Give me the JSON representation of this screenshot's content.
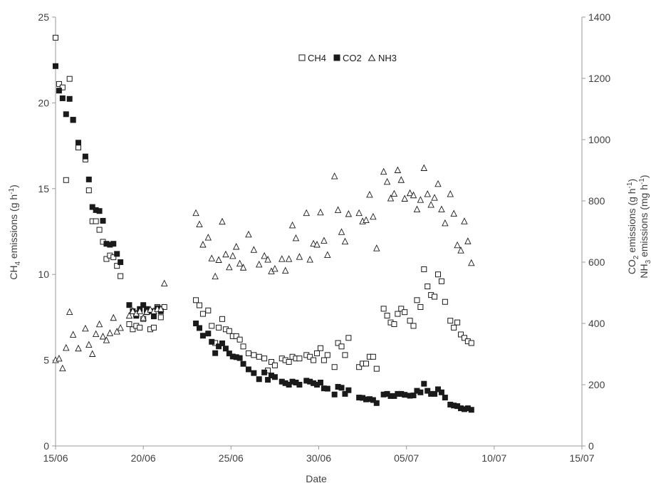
{
  "chart_data": {
    "type": "scatter",
    "xlabel": "Date",
    "ylabel_left": "CH4 emissions (g h-1)",
    "ylabel_left_parts": {
      "pre": "CH",
      "sub": "4",
      "post": " emissions (g h",
      "sup": "-1",
      "end": ")"
    },
    "ylabel_right_1_parts": {
      "pre": "CO",
      "sub": "2",
      "post": " emissions (g h",
      "sup": "-1",
      "end": ")"
    },
    "ylabel_right_2_parts": {
      "pre": "NH",
      "sub": "3",
      "post": " emissions (mg h",
      "sup": "-1",
      "end": ")"
    },
    "x_ticks": [
      "15/06",
      "20/06",
      "25/06",
      "30/06",
      "05/07",
      "10/07",
      "15/07"
    ],
    "xlim": [
      0,
      30
    ],
    "y_left_ticks": [
      "0",
      "5",
      "10",
      "15",
      "20",
      "25"
    ],
    "ylim_left": [
      0,
      25
    ],
    "y_right_ticks": [
      "0",
      "200",
      "400",
      "600",
      "800",
      "1000",
      "1200",
      "1400"
    ],
    "ylim_right": [
      0,
      1400
    ],
    "grid": false,
    "legend_position": "top-center",
    "colors": {
      "axis": "#9a9a9a",
      "marker_stroke": "#1a1a1a",
      "co2_fill": "#1a1a1a"
    },
    "series": [
      {
        "name": "CH4",
        "marker": "open-square",
        "axis": "left",
        "points": [
          [
            0.0,
            23.8
          ],
          [
            0.2,
            21.1
          ],
          [
            0.4,
            20.9
          ],
          [
            0.6,
            15.5
          ],
          [
            0.8,
            21.4
          ],
          [
            1.0,
            19.0
          ],
          [
            1.3,
            17.4
          ],
          [
            1.7,
            16.7
          ],
          [
            1.9,
            14.9
          ],
          [
            2.1,
            13.1
          ],
          [
            2.3,
            13.1
          ],
          [
            2.5,
            12.6
          ],
          [
            2.7,
            11.9
          ],
          [
            2.9,
            10.9
          ],
          [
            3.1,
            11.1
          ],
          [
            3.3,
            11.0
          ],
          [
            3.5,
            10.5
          ],
          [
            3.7,
            9.9
          ],
          [
            4.2,
            7.1
          ],
          [
            4.4,
            6.8
          ],
          [
            4.6,
            7.0
          ],
          [
            4.8,
            6.9
          ],
          [
            5.0,
            7.4
          ],
          [
            5.2,
            7.8
          ],
          [
            5.4,
            6.8
          ],
          [
            5.6,
            6.9
          ],
          [
            5.8,
            8.1
          ],
          [
            6.0,
            7.5
          ],
          [
            6.2,
            8.1
          ],
          [
            8.0,
            8.5
          ],
          [
            8.2,
            8.2
          ],
          [
            8.4,
            7.7
          ],
          [
            8.7,
            7.9
          ],
          [
            8.9,
            7.0
          ],
          [
            9.1,
            6.0
          ],
          [
            9.3,
            6.9
          ],
          [
            9.5,
            7.4
          ],
          [
            9.7,
            6.8
          ],
          [
            9.9,
            6.7
          ],
          [
            10.1,
            6.4
          ],
          [
            10.3,
            6.4
          ],
          [
            10.5,
            6.2
          ],
          [
            10.7,
            5.8
          ],
          [
            11.0,
            5.4
          ],
          [
            11.3,
            5.3
          ],
          [
            11.6,
            5.2
          ],
          [
            11.9,
            5.1
          ],
          [
            12.1,
            4.4
          ],
          [
            12.3,
            4.9
          ],
          [
            12.5,
            4.7
          ],
          [
            12.9,
            5.1
          ],
          [
            13.1,
            5.0
          ],
          [
            13.3,
            4.9
          ],
          [
            13.5,
            5.2
          ],
          [
            13.7,
            5.1
          ],
          [
            13.9,
            5.1
          ],
          [
            14.3,
            5.3
          ],
          [
            14.5,
            5.2
          ],
          [
            14.7,
            5.0
          ],
          [
            14.9,
            5.4
          ],
          [
            15.1,
            5.7
          ],
          [
            15.3,
            5.0
          ],
          [
            15.5,
            5.3
          ],
          [
            15.9,
            4.6
          ],
          [
            16.1,
            6.0
          ],
          [
            16.3,
            5.8
          ],
          [
            16.5,
            5.3
          ],
          [
            16.7,
            6.3
          ],
          [
            17.3,
            4.6
          ],
          [
            17.5,
            4.8
          ],
          [
            17.7,
            4.8
          ],
          [
            17.9,
            5.2
          ],
          [
            18.1,
            5.2
          ],
          [
            18.3,
            4.5
          ],
          [
            18.7,
            8.0
          ],
          [
            18.9,
            7.6
          ],
          [
            19.1,
            7.2
          ],
          [
            19.3,
            7.1
          ],
          [
            19.5,
            7.7
          ],
          [
            19.7,
            8.0
          ],
          [
            19.9,
            7.8
          ],
          [
            20.2,
            7.3
          ],
          [
            20.4,
            7.0
          ],
          [
            20.6,
            8.5
          ],
          [
            20.8,
            8.1
          ],
          [
            21.0,
            10.3
          ],
          [
            21.2,
            9.3
          ],
          [
            21.4,
            8.8
          ],
          [
            21.6,
            8.7
          ],
          [
            21.8,
            10.0
          ],
          [
            22.0,
            9.6
          ],
          [
            22.2,
            8.4
          ],
          [
            22.5,
            7.3
          ],
          [
            22.7,
            6.9
          ],
          [
            22.9,
            7.2
          ],
          [
            23.1,
            6.5
          ],
          [
            23.3,
            6.3
          ],
          [
            23.5,
            6.1
          ],
          [
            23.7,
            6.0
          ]
        ]
      },
      {
        "name": "CO2",
        "marker": "filled-square",
        "axis": "right",
        "points": [
          [
            0.0,
            1240
          ],
          [
            0.2,
            1160
          ],
          [
            0.4,
            1135
          ],
          [
            0.6,
            1083
          ],
          [
            0.8,
            1133
          ],
          [
            1.0,
            1065
          ],
          [
            1.3,
            990
          ],
          [
            1.7,
            945
          ],
          [
            1.9,
            870
          ],
          [
            2.1,
            780
          ],
          [
            2.3,
            770
          ],
          [
            2.5,
            767
          ],
          [
            2.7,
            735
          ],
          [
            2.9,
            660
          ],
          [
            3.1,
            657
          ],
          [
            3.3,
            660
          ],
          [
            3.5,
            627
          ],
          [
            3.7,
            600
          ],
          [
            4.2,
            460
          ],
          [
            4.4,
            440
          ],
          [
            4.6,
            425
          ],
          [
            4.8,
            447
          ],
          [
            5.0,
            460
          ],
          [
            5.2,
            447
          ],
          [
            5.4,
            440
          ],
          [
            5.6,
            423
          ],
          [
            5.8,
            450
          ],
          [
            6.0,
            440
          ],
          [
            8.0,
            400
          ],
          [
            8.2,
            385
          ],
          [
            8.4,
            360
          ],
          [
            8.7,
            367
          ],
          [
            8.9,
            340
          ],
          [
            9.1,
            303
          ],
          [
            9.3,
            325
          ],
          [
            9.5,
            335
          ],
          [
            9.7,
            318
          ],
          [
            9.9,
            302
          ],
          [
            10.1,
            292
          ],
          [
            10.3,
            290
          ],
          [
            10.5,
            287
          ],
          [
            10.7,
            268
          ],
          [
            11.0,
            250
          ],
          [
            11.3,
            238
          ],
          [
            11.6,
            218
          ],
          [
            11.9,
            240
          ],
          [
            12.1,
            216
          ],
          [
            12.3,
            230
          ],
          [
            12.5,
            225
          ],
          [
            12.9,
            210
          ],
          [
            13.1,
            205
          ],
          [
            13.3,
            200
          ],
          [
            13.5,
            210
          ],
          [
            13.7,
            207
          ],
          [
            13.9,
            200
          ],
          [
            14.3,
            213
          ],
          [
            14.5,
            210
          ],
          [
            14.7,
            205
          ],
          [
            14.9,
            200
          ],
          [
            15.1,
            207
          ],
          [
            15.3,
            188
          ],
          [
            15.5,
            187
          ],
          [
            15.9,
            168
          ],
          [
            16.1,
            193
          ],
          [
            16.3,
            190
          ],
          [
            16.5,
            170
          ],
          [
            16.7,
            182
          ],
          [
            17.3,
            158
          ],
          [
            17.5,
            157
          ],
          [
            17.7,
            152
          ],
          [
            17.9,
            153
          ],
          [
            18.1,
            150
          ],
          [
            18.3,
            140
          ],
          [
            18.7,
            168
          ],
          [
            18.9,
            170
          ],
          [
            19.1,
            163
          ],
          [
            19.3,
            163
          ],
          [
            19.5,
            170
          ],
          [
            19.7,
            170
          ],
          [
            19.9,
            167
          ],
          [
            20.2,
            164
          ],
          [
            20.4,
            165
          ],
          [
            20.6,
            180
          ],
          [
            20.8,
            175
          ],
          [
            21.0,
            203
          ],
          [
            21.2,
            180
          ],
          [
            21.4,
            170
          ],
          [
            21.6,
            170
          ],
          [
            21.8,
            185
          ],
          [
            22.0,
            175
          ],
          [
            22.2,
            158
          ],
          [
            22.5,
            135
          ],
          [
            22.7,
            132
          ],
          [
            22.9,
            130
          ],
          [
            23.1,
            123
          ],
          [
            23.3,
            120
          ],
          [
            23.5,
            123
          ],
          [
            23.7,
            118
          ]
        ]
      },
      {
        "name": "NH3",
        "marker": "open-triangle",
        "axis": "right",
        "points": [
          [
            0.0,
            280
          ],
          [
            0.2,
            285
          ],
          [
            0.4,
            253
          ],
          [
            0.6,
            320
          ],
          [
            0.8,
            437
          ],
          [
            1.0,
            363
          ],
          [
            1.3,
            318
          ],
          [
            1.7,
            383
          ],
          [
            1.9,
            330
          ],
          [
            2.1,
            300
          ],
          [
            2.3,
            365
          ],
          [
            2.5,
            397
          ],
          [
            2.7,
            357
          ],
          [
            2.9,
            345
          ],
          [
            3.1,
            368
          ],
          [
            3.3,
            418
          ],
          [
            3.5,
            373
          ],
          [
            3.7,
            385
          ],
          [
            4.2,
            425
          ],
          [
            4.4,
            440
          ],
          [
            4.6,
            432
          ],
          [
            4.8,
            440
          ],
          [
            5.0,
            418
          ],
          [
            5.2,
            438
          ],
          [
            5.4,
            445
          ],
          [
            5.6,
            440
          ],
          [
            5.8,
            447
          ],
          [
            6.0,
            447
          ],
          [
            6.2,
            530
          ],
          [
            8.0,
            760
          ],
          [
            8.2,
            723
          ],
          [
            8.4,
            657
          ],
          [
            8.7,
            680
          ],
          [
            8.9,
            612
          ],
          [
            9.1,
            553
          ],
          [
            9.3,
            607
          ],
          [
            9.5,
            732
          ],
          [
            9.7,
            625
          ],
          [
            9.9,
            583
          ],
          [
            10.1,
            620
          ],
          [
            10.3,
            650
          ],
          [
            10.5,
            595
          ],
          [
            10.7,
            582
          ],
          [
            11.0,
            690
          ],
          [
            11.3,
            640
          ],
          [
            11.6,
            592
          ],
          [
            11.9,
            620
          ],
          [
            12.1,
            608
          ],
          [
            12.3,
            570
          ],
          [
            12.5,
            578
          ],
          [
            12.9,
            610
          ],
          [
            13.1,
            572
          ],
          [
            13.3,
            610
          ],
          [
            13.5,
            720
          ],
          [
            13.7,
            678
          ],
          [
            13.9,
            617
          ],
          [
            14.3,
            760
          ],
          [
            14.5,
            608
          ],
          [
            14.7,
            660
          ],
          [
            14.9,
            657
          ],
          [
            15.1,
            762
          ],
          [
            15.3,
            670
          ],
          [
            15.5,
            623
          ],
          [
            15.9,
            880
          ],
          [
            16.1,
            770
          ],
          [
            16.3,
            698
          ],
          [
            16.5,
            667
          ],
          [
            16.7,
            757
          ],
          [
            17.3,
            760
          ],
          [
            17.5,
            733
          ],
          [
            17.7,
            737
          ],
          [
            17.9,
            820
          ],
          [
            18.1,
            748
          ],
          [
            18.3,
            645
          ],
          [
            18.7,
            895
          ],
          [
            18.9,
            862
          ],
          [
            19.1,
            808
          ],
          [
            19.3,
            823
          ],
          [
            19.5,
            900
          ],
          [
            19.7,
            868
          ],
          [
            19.9,
            807
          ],
          [
            20.2,
            825
          ],
          [
            20.4,
            818
          ],
          [
            20.6,
            772
          ],
          [
            20.8,
            803
          ],
          [
            21.0,
            907
          ],
          [
            21.2,
            822
          ],
          [
            21.4,
            787
          ],
          [
            21.6,
            810
          ],
          [
            21.8,
            855
          ],
          [
            22.0,
            772
          ],
          [
            22.2,
            727
          ],
          [
            22.5,
            822
          ],
          [
            22.7,
            758
          ],
          [
            22.9,
            655
          ],
          [
            23.1,
            638
          ],
          [
            23.3,
            733
          ],
          [
            23.5,
            668
          ],
          [
            23.7,
            597
          ]
        ]
      }
    ]
  }
}
